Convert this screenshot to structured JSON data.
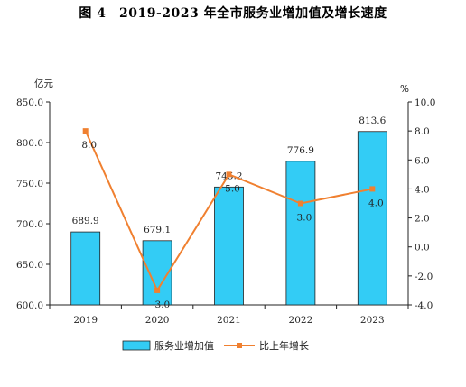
{
  "title": "图 4　2019-2023 年全市服务业增加值及增长速度",
  "chart_data": {
    "type": "bar",
    "categories": [
      "2019",
      "2020",
      "2021",
      "2022",
      "2023"
    ],
    "series": [
      {
        "name": "服务业增加值",
        "type": "bar",
        "axis": "left",
        "values": [
          689.9,
          679.1,
          745.2,
          776.9,
          813.6
        ],
        "labels": [
          "689.9",
          "679.1",
          "745.2",
          "776.9",
          "813.6"
        ],
        "color": "#33CCF5"
      },
      {
        "name": "比上年增长",
        "type": "line",
        "axis": "right",
        "values": [
          8.0,
          -3.0,
          5.0,
          3.0,
          4.0
        ],
        "labels": [
          "8.0",
          "-3.0",
          "5.0",
          "3.0",
          "4.0"
        ],
        "color": "#F08030"
      }
    ],
    "y_left": {
      "unit": "亿元",
      "min": 600,
      "max": 850,
      "step": 50,
      "tick_labels": [
        "600.0",
        "650.0",
        "700.0",
        "750.0",
        "800.0",
        "850.0"
      ]
    },
    "y_right": {
      "unit": "%",
      "min": -4,
      "max": 10,
      "step": 2,
      "tick_labels": [
        "-4.0",
        "-2.0",
        "0.0",
        "2.0",
        "4.0",
        "6.0",
        "8.0",
        "10.0"
      ]
    },
    "legend_position": "bottom",
    "grid": false
  }
}
